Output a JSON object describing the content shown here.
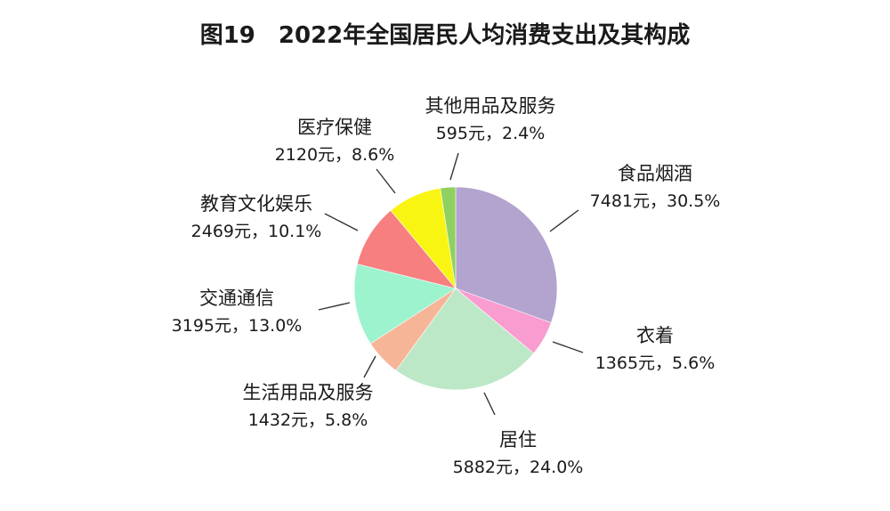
{
  "chart_data": {
    "type": "pie",
    "title": "图19　2022年全国居民人均消费支出及其构成",
    "slices": [
      {
        "name": "食品烟酒",
        "value": 7481,
        "value_label": "7481元，30.5%",
        "percent": 30.5,
        "color": "#b3a3cf"
      },
      {
        "name": "衣着",
        "value": 1365,
        "value_label": "1365元，5.6%",
        "percent": 5.6,
        "color": "#f99cd0"
      },
      {
        "name": "居住",
        "value": 5882,
        "value_label": "5882元，24.0%",
        "percent": 24.0,
        "color": "#bde8c8"
      },
      {
        "name": "生活用品及服务",
        "value": 1432,
        "value_label": "1432元，5.8%",
        "percent": 5.8,
        "color": "#f7b598"
      },
      {
        "name": "交通通信",
        "value": 3195,
        "value_label": "3195元，13.0%",
        "percent": 13.0,
        "color": "#9ef3cf"
      },
      {
        "name": "教育文化娱乐",
        "value": 2469,
        "value_label": "2469元，10.1%",
        "percent": 10.1,
        "color": "#f77f7f"
      },
      {
        "name": "医疗保健",
        "value": 2120,
        "value_label": "2120元，8.6%",
        "percent": 8.6,
        "color": "#f9f512"
      },
      {
        "name": "其他用品及服务",
        "value": 595,
        "value_label": "595元，2.4%",
        "percent": 2.4,
        "color": "#8fd160"
      }
    ]
  }
}
